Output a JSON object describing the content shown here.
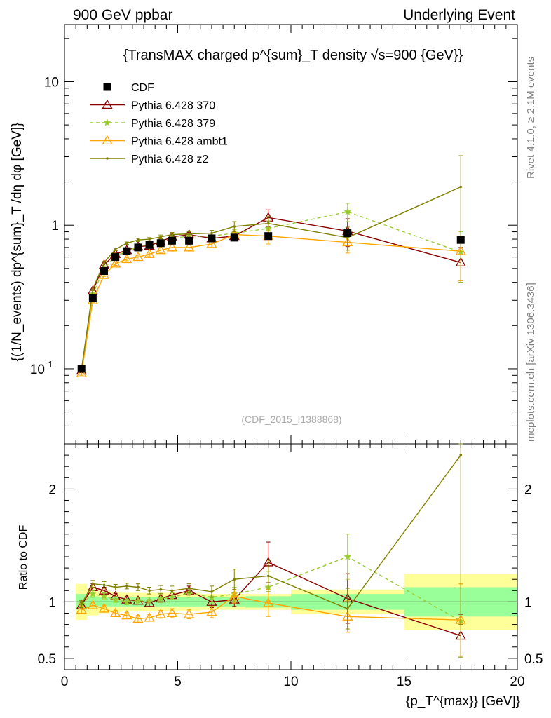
{
  "header": {
    "left": "900 GeV ppbar",
    "right": "Underlying Event"
  },
  "side_labels": {
    "rivet": "Rivet 4.1.0, ≥ 2.1M events",
    "mcplots": "mcplots.cern.ch [arXiv:1306.3436]"
  },
  "main_plot": {
    "title": "{TransMAX charged p^{sum}_T density √s=900 {GeV}}",
    "ylabel": "{(1/N_events) dp^{sum}_T /dη dφ [GeV]}",
    "analysis_id": "(CDF_2015_I1388868)",
    "yscale": "log",
    "ylim": [
      0.03,
      25
    ],
    "y_ticks": [
      {
        "value": 0.1,
        "label": "10^-1"
      },
      {
        "value": 1,
        "label": "1"
      },
      {
        "value": 10,
        "label": "10"
      }
    ]
  },
  "ratio_plot": {
    "ylabel": "Ratio to CDF",
    "ylim": [
      0.4,
      2.4
    ],
    "y_ticks": [
      {
        "value": 0.5,
        "label": "0.5"
      },
      {
        "value": 1,
        "label": "1"
      },
      {
        "value": 2,
        "label": "2"
      }
    ]
  },
  "x_axis": {
    "label": "{p_T^{max}} [GeV]}",
    "xlim": [
      0,
      20
    ],
    "ticks": [
      {
        "value": 0,
        "label": "0"
      },
      {
        "value": 5,
        "label": "5"
      },
      {
        "value": 10,
        "label": "10"
      },
      {
        "value": 15,
        "label": "15"
      },
      {
        "value": 20,
        "label": "20"
      }
    ]
  },
  "chart_data": {
    "type": "scatter",
    "title": "TransMAX charged pT sum density √s=900 GeV",
    "xlabel": "pT max [GeV]",
    "ylabel": "(1/N events) dp sum T / dη dφ [GeV]",
    "x": [
      0.75,
      1.25,
      1.75,
      2.25,
      2.75,
      3.25,
      3.75,
      4.25,
      4.75,
      5.5,
      6.5,
      7.5,
      9.0,
      12.5,
      17.5
    ],
    "data": {
      "name": "CDF",
      "color": "#000000",
      "values": [
        0.1,
        0.31,
        0.48,
        0.6,
        0.66,
        0.7,
        0.73,
        0.75,
        0.78,
        0.78,
        0.81,
        0.82,
        0.84,
        0.88,
        0.79
      ],
      "xbins": [
        [
          0.5,
          1.0
        ],
        [
          1.0,
          1.5
        ],
        [
          1.5,
          2.0
        ],
        [
          2.0,
          2.5
        ],
        [
          2.5,
          3.0
        ],
        [
          3.0,
          3.5
        ],
        [
          3.5,
          4.0
        ],
        [
          4.0,
          4.5
        ],
        [
          4.5,
          5.0
        ],
        [
          5.0,
          6.0
        ],
        [
          6.0,
          7.0
        ],
        [
          7.0,
          8.0
        ],
        [
          8.0,
          10.0
        ],
        [
          10.0,
          15.0
        ],
        [
          15.0,
          20.0
        ]
      ],
      "ratio_band_inner": [
        0.07,
        0.05,
        0.04,
        0.04,
        0.04,
        0.04,
        0.04,
        0.04,
        0.04,
        0.04,
        0.04,
        0.04,
        0.05,
        0.07,
        0.13
      ],
      "ratio_band_outer": [
        0.16,
        0.12,
        0.1,
        0.09,
        0.08,
        0.08,
        0.08,
        0.08,
        0.08,
        0.08,
        0.07,
        0.07,
        0.07,
        0.11,
        0.25
      ]
    },
    "series": [
      {
        "name": "Pythia 6.428 370",
        "color": "#8b0000",
        "dashed": false,
        "marker": "open-triangle",
        "values": [
          0.097,
          0.35,
          0.53,
          0.63,
          0.67,
          0.71,
          0.72,
          0.77,
          0.83,
          0.86,
          0.81,
          0.84,
          1.13,
          0.91,
          0.55
        ],
        "errors": [
          0.003,
          0.01,
          0.01,
          0.015,
          0.015,
          0.02,
          0.02,
          0.025,
          0.03,
          0.03,
          0.04,
          0.05,
          0.15,
          0.2,
          0.15
        ],
        "ratio": [
          0.97,
          1.13,
          1.1,
          1.05,
          1.02,
          1.01,
          0.99,
          1.03,
          1.06,
          1.1,
          1.0,
          1.02,
          1.35,
          1.03,
          0.7
        ],
        "ratio_errors": [
          0.03,
          0.03,
          0.03,
          0.025,
          0.025,
          0.03,
          0.03,
          0.035,
          0.04,
          0.04,
          0.05,
          0.06,
          0.18,
          0.22,
          0.19
        ]
      },
      {
        "name": "Pythia 6.428 379",
        "color": "#9acd32",
        "dashed": true,
        "marker": "star",
        "values": [
          0.098,
          0.33,
          0.5,
          0.61,
          0.66,
          0.71,
          0.74,
          0.77,
          0.81,
          0.84,
          0.84,
          0.88,
          0.95,
          1.24,
          0.65
        ],
        "errors": [
          0.003,
          0.01,
          0.01,
          0.015,
          0.015,
          0.02,
          0.02,
          0.025,
          0.03,
          0.03,
          0.04,
          0.05,
          0.12,
          0.18,
          0.25
        ],
        "ratio": [
          0.98,
          1.07,
          1.05,
          1.02,
          1.0,
          1.01,
          1.01,
          1.03,
          1.04,
          1.08,
          1.04,
          1.07,
          1.13,
          1.4,
          0.83
        ],
        "ratio_errors": [
          0.03,
          0.03,
          0.03,
          0.025,
          0.025,
          0.03,
          0.03,
          0.035,
          0.04,
          0.04,
          0.05,
          0.06,
          0.14,
          0.2,
          0.32
        ]
      },
      {
        "name": "Pythia 6.428 ambt1",
        "color": "#ffa500",
        "dashed": false,
        "marker": "open-triangle",
        "values": [
          0.093,
          0.3,
          0.45,
          0.54,
          0.58,
          0.6,
          0.63,
          0.67,
          0.7,
          0.7,
          0.74,
          0.86,
          0.84,
          0.76,
          0.66
        ],
        "errors": [
          0.003,
          0.01,
          0.01,
          0.015,
          0.015,
          0.02,
          0.02,
          0.025,
          0.03,
          0.03,
          0.04,
          0.05,
          0.1,
          0.12,
          0.25
        ],
        "ratio": [
          0.93,
          0.97,
          0.94,
          0.9,
          0.88,
          0.85,
          0.86,
          0.89,
          0.9,
          0.89,
          0.91,
          1.05,
          0.99,
          0.87,
          0.84
        ],
        "ratio_errors": [
          0.03,
          0.03,
          0.03,
          0.025,
          0.025,
          0.03,
          0.03,
          0.035,
          0.04,
          0.04,
          0.05,
          0.06,
          0.12,
          0.14,
          0.32
        ]
      },
      {
        "name": "Pythia 6.428 z2",
        "color": "#808000",
        "dashed": false,
        "marker": "dot",
        "values": [
          0.098,
          0.36,
          0.55,
          0.68,
          0.75,
          0.79,
          0.8,
          0.83,
          0.86,
          0.87,
          0.88,
          0.98,
          1.03,
          0.82,
          1.85
        ],
        "errors": [
          0.003,
          0.01,
          0.01,
          0.015,
          0.015,
          0.02,
          0.02,
          0.025,
          0.03,
          0.03,
          0.04,
          0.08,
          0.12,
          0.15,
          1.2
        ],
        "ratio": [
          0.98,
          1.16,
          1.15,
          1.13,
          1.14,
          1.13,
          1.1,
          1.11,
          1.1,
          1.12,
          1.09,
          1.2,
          1.23,
          0.94,
          2.3
        ],
        "ratio_errors": [
          0.03,
          0.03,
          0.03,
          0.025,
          0.025,
          0.03,
          0.03,
          0.035,
          0.04,
          0.04,
          0.05,
          0.09,
          0.14,
          0.18,
          1.5
        ]
      }
    ]
  }
}
